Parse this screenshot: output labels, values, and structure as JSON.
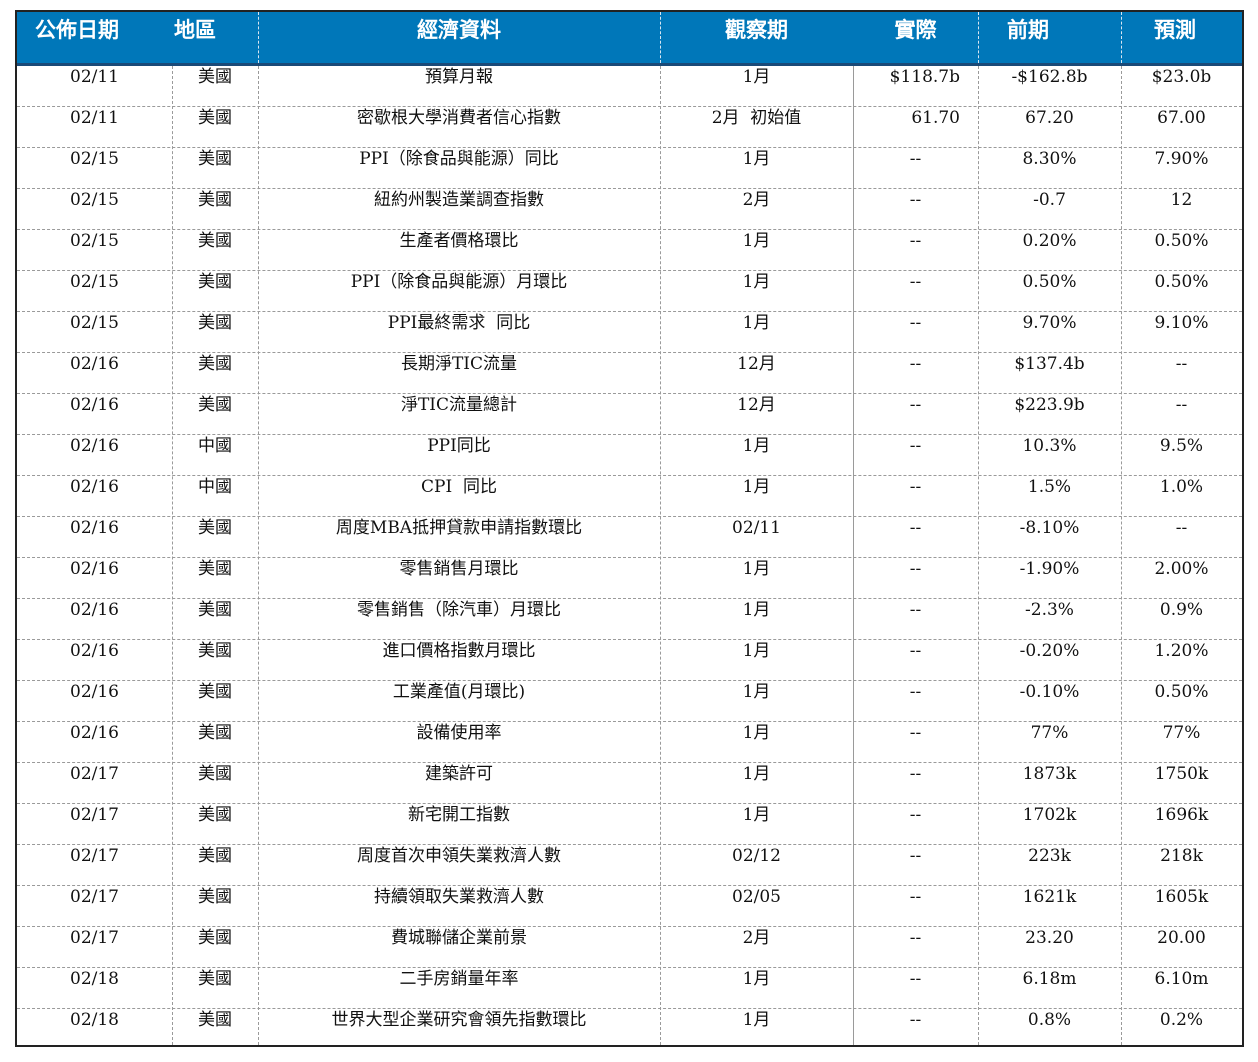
{
  "headers": [
    "公佈日期",
    "地區",
    "經濟資料",
    "觀察期",
    "實際",
    "前期",
    "預測"
  ],
  "rows": [
    [
      "02/11",
      "美國",
      "預算月報",
      "1月",
      "$118.7b",
      "-$162.8b",
      "$23.0b"
    ],
    [
      "02/11",
      "美國",
      "密歇根大學消費者信心指數",
      "2月  初始值",
      "61.70",
      "67.20",
      "67.00"
    ],
    [
      "02/15",
      "美國",
      "PPI（除食品與能源）同比",
      "1月",
      "--",
      "8.30%",
      "7.90%"
    ],
    [
      "02/15",
      "美國",
      "紐約州製造業調查指數",
      "2月",
      "--",
      "-0.7",
      "12"
    ],
    [
      "02/15",
      "美國",
      "生產者價格環比",
      "1月",
      "--",
      "0.20%",
      "0.50%"
    ],
    [
      "02/15",
      "美國",
      "PPI（除食品與能源）月環比",
      "1月",
      "--",
      "0.50%",
      "0.50%"
    ],
    [
      "02/15",
      "美國",
      "PPI最終需求  同比",
      "1月",
      "--",
      "9.70%",
      "9.10%"
    ],
    [
      "02/16",
      "美國",
      "長期淨TIC流量",
      "12月",
      "--",
      "$137.4b",
      "--"
    ],
    [
      "02/16",
      "美國",
      "淨TIC流量總計",
      "12月",
      "--",
      "$223.9b",
      "--"
    ],
    [
      "02/16",
      "中國",
      "PPI同比",
      "1月",
      "--",
      "10.3%",
      "9.5%"
    ],
    [
      "02/16",
      "中國",
      "CPI  同比",
      "1月",
      "--",
      "1.5%",
      "1.0%"
    ],
    [
      "02/16",
      "美國",
      "周度MBA抵押貸款申請指數環比",
      "02/11",
      "--",
      "-8.10%",
      "--"
    ],
    [
      "02/16",
      "美國",
      "零售銷售月環比",
      "1月",
      "--",
      "-1.90%",
      "2.00%"
    ],
    [
      "02/16",
      "美國",
      "零售銷售（除汽車）月環比",
      "1月",
      "--",
      "-2.3%",
      "0.9%"
    ],
    [
      "02/16",
      "美國",
      "進口價格指數月環比",
      "1月",
      "--",
      "-0.20%",
      "1.20%"
    ],
    [
      "02/16",
      "美國",
      "工業產值(月環比)",
      "1月",
      "--",
      "-0.10%",
      "0.50%"
    ],
    [
      "02/16",
      "美國",
      "設備使用率",
      "1月",
      "--",
      "77%",
      "77%"
    ],
    [
      "02/17",
      "美國",
      "建築許可",
      "1月",
      "--",
      "1873k",
      "1750k"
    ],
    [
      "02/17",
      "美國",
      "新宅開工指數",
      "1月",
      "--",
      "1702k",
      "1696k"
    ],
    [
      "02/17",
      "美國",
      "周度首次申領失業救濟人數",
      "02/12",
      "--",
      "223k",
      "218k"
    ],
    [
      "02/17",
      "美國",
      "持續領取失業救濟人數",
      "02/05",
      "--",
      "1621k",
      "1605k"
    ],
    [
      "02/17",
      "美國",
      "費城聯儲企業前景",
      "2月",
      "--",
      "23.20",
      "20.00"
    ],
    [
      "02/18",
      "美國",
      "二手房銷量年率",
      "1月",
      "--",
      "6.18m",
      "6.10m"
    ],
    [
      "02/18",
      "美國",
      "世界大型企業研究會領先指數環比",
      "1月",
      "--",
      "0.8%",
      "0.2%"
    ]
  ],
  "colors": {
    "header_bg": "#0077b9",
    "header_text": "#ffffff",
    "grid": "#9a9a9a"
  }
}
